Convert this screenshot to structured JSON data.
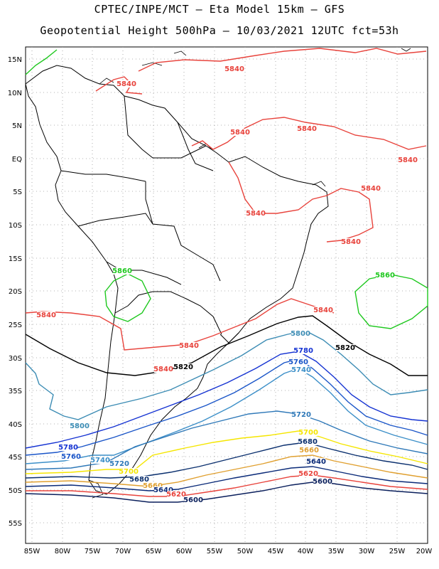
{
  "header": {
    "line1": "CPTEC/INPE/MCT –  Eta Model 15km – GFS",
    "line2": "Geopotential Height 500hPa – 10/03/2021 12UTC fct=53h"
  },
  "axes": {
    "lat_labels": [
      "15N",
      "10N",
      "5N",
      "EQ",
      "5S",
      "10S",
      "15S",
      "20S",
      "25S",
      "30S",
      "35S",
      "40S",
      "45S",
      "50S",
      "55S"
    ],
    "lon_labels": [
      "85W",
      "80W",
      "75W",
      "70W",
      "65W",
      "60W",
      "55W",
      "50W",
      "45W",
      "40W",
      "35W",
      "30W",
      "25W",
      "20W"
    ],
    "lat_range": [
      15,
      -58
    ],
    "lon_range": [
      -86,
      -20
    ],
    "grid": "dotted"
  },
  "colors": {
    "c5600": "#0a1f5c",
    "c5620": "#e8433c",
    "c5640": "#0a2a78",
    "c5660": "#e0a030",
    "c5680": "#0a2f6e",
    "c5700": "#f5e600",
    "c5720": "#2e78b8",
    "c5740": "#3c8fc8",
    "c5760": "#1a55c8",
    "c5780": "#1432d2",
    "c5800": "#3c8cb4",
    "c5820": "#000000",
    "c5840": "#e8433c",
    "c5860": "#1ec81e",
    "coast": "#000000"
  },
  "contour_labels": [
    {
      "text": "5840",
      "color": "c5840"
    },
    {
      "text": "5840",
      "color": "c5840"
    },
    {
      "text": "5840",
      "color": "c5840"
    },
    {
      "text": "5840",
      "color": "c5840"
    },
    {
      "text": "5840",
      "color": "c5840"
    },
    {
      "text": "5840",
      "color": "c5840"
    },
    {
      "text": "5840",
      "color": "c5840"
    },
    {
      "text": "5840",
      "color": "c5840"
    },
    {
      "text": "5840",
      "color": "c5840"
    },
    {
      "text": "5840",
      "color": "c5840"
    },
    {
      "text": "5840",
      "color": "c5840"
    },
    {
      "text": "5840",
      "color": "c5840"
    },
    {
      "text": "5860",
      "color": "c5860"
    },
    {
      "text": "5860",
      "color": "c5860"
    },
    {
      "text": "5820",
      "color": "c5820"
    },
    {
      "text": "5820",
      "color": "c5820"
    },
    {
      "text": "5800",
      "color": "c5800"
    },
    {
      "text": "5800",
      "color": "c5800"
    },
    {
      "text": "5780",
      "color": "c5780"
    },
    {
      "text": "5780",
      "color": "c5780"
    },
    {
      "text": "5760",
      "color": "c5760"
    },
    {
      "text": "5760",
      "color": "c5760"
    },
    {
      "text": "5740",
      "color": "c5740"
    },
    {
      "text": "5740",
      "color": "c5740"
    },
    {
      "text": "5720",
      "color": "c5720"
    },
    {
      "text": "5720",
      "color": "c5720"
    },
    {
      "text": "5700",
      "color": "c5700"
    },
    {
      "text": "5700",
      "color": "c5700"
    },
    {
      "text": "5680",
      "color": "c5680"
    },
    {
      "text": "5680",
      "color": "c5680"
    },
    {
      "text": "5660",
      "color": "c5660"
    },
    {
      "text": "5660",
      "color": "c5660"
    },
    {
      "text": "5640",
      "color": "c5640"
    },
    {
      "text": "5640",
      "color": "c5640"
    },
    {
      "text": "5620",
      "color": "c5620"
    },
    {
      "text": "5620",
      "color": "c5620"
    },
    {
      "text": "5600",
      "color": "c5600"
    },
    {
      "text": "5600",
      "color": "c5600"
    }
  ]
}
